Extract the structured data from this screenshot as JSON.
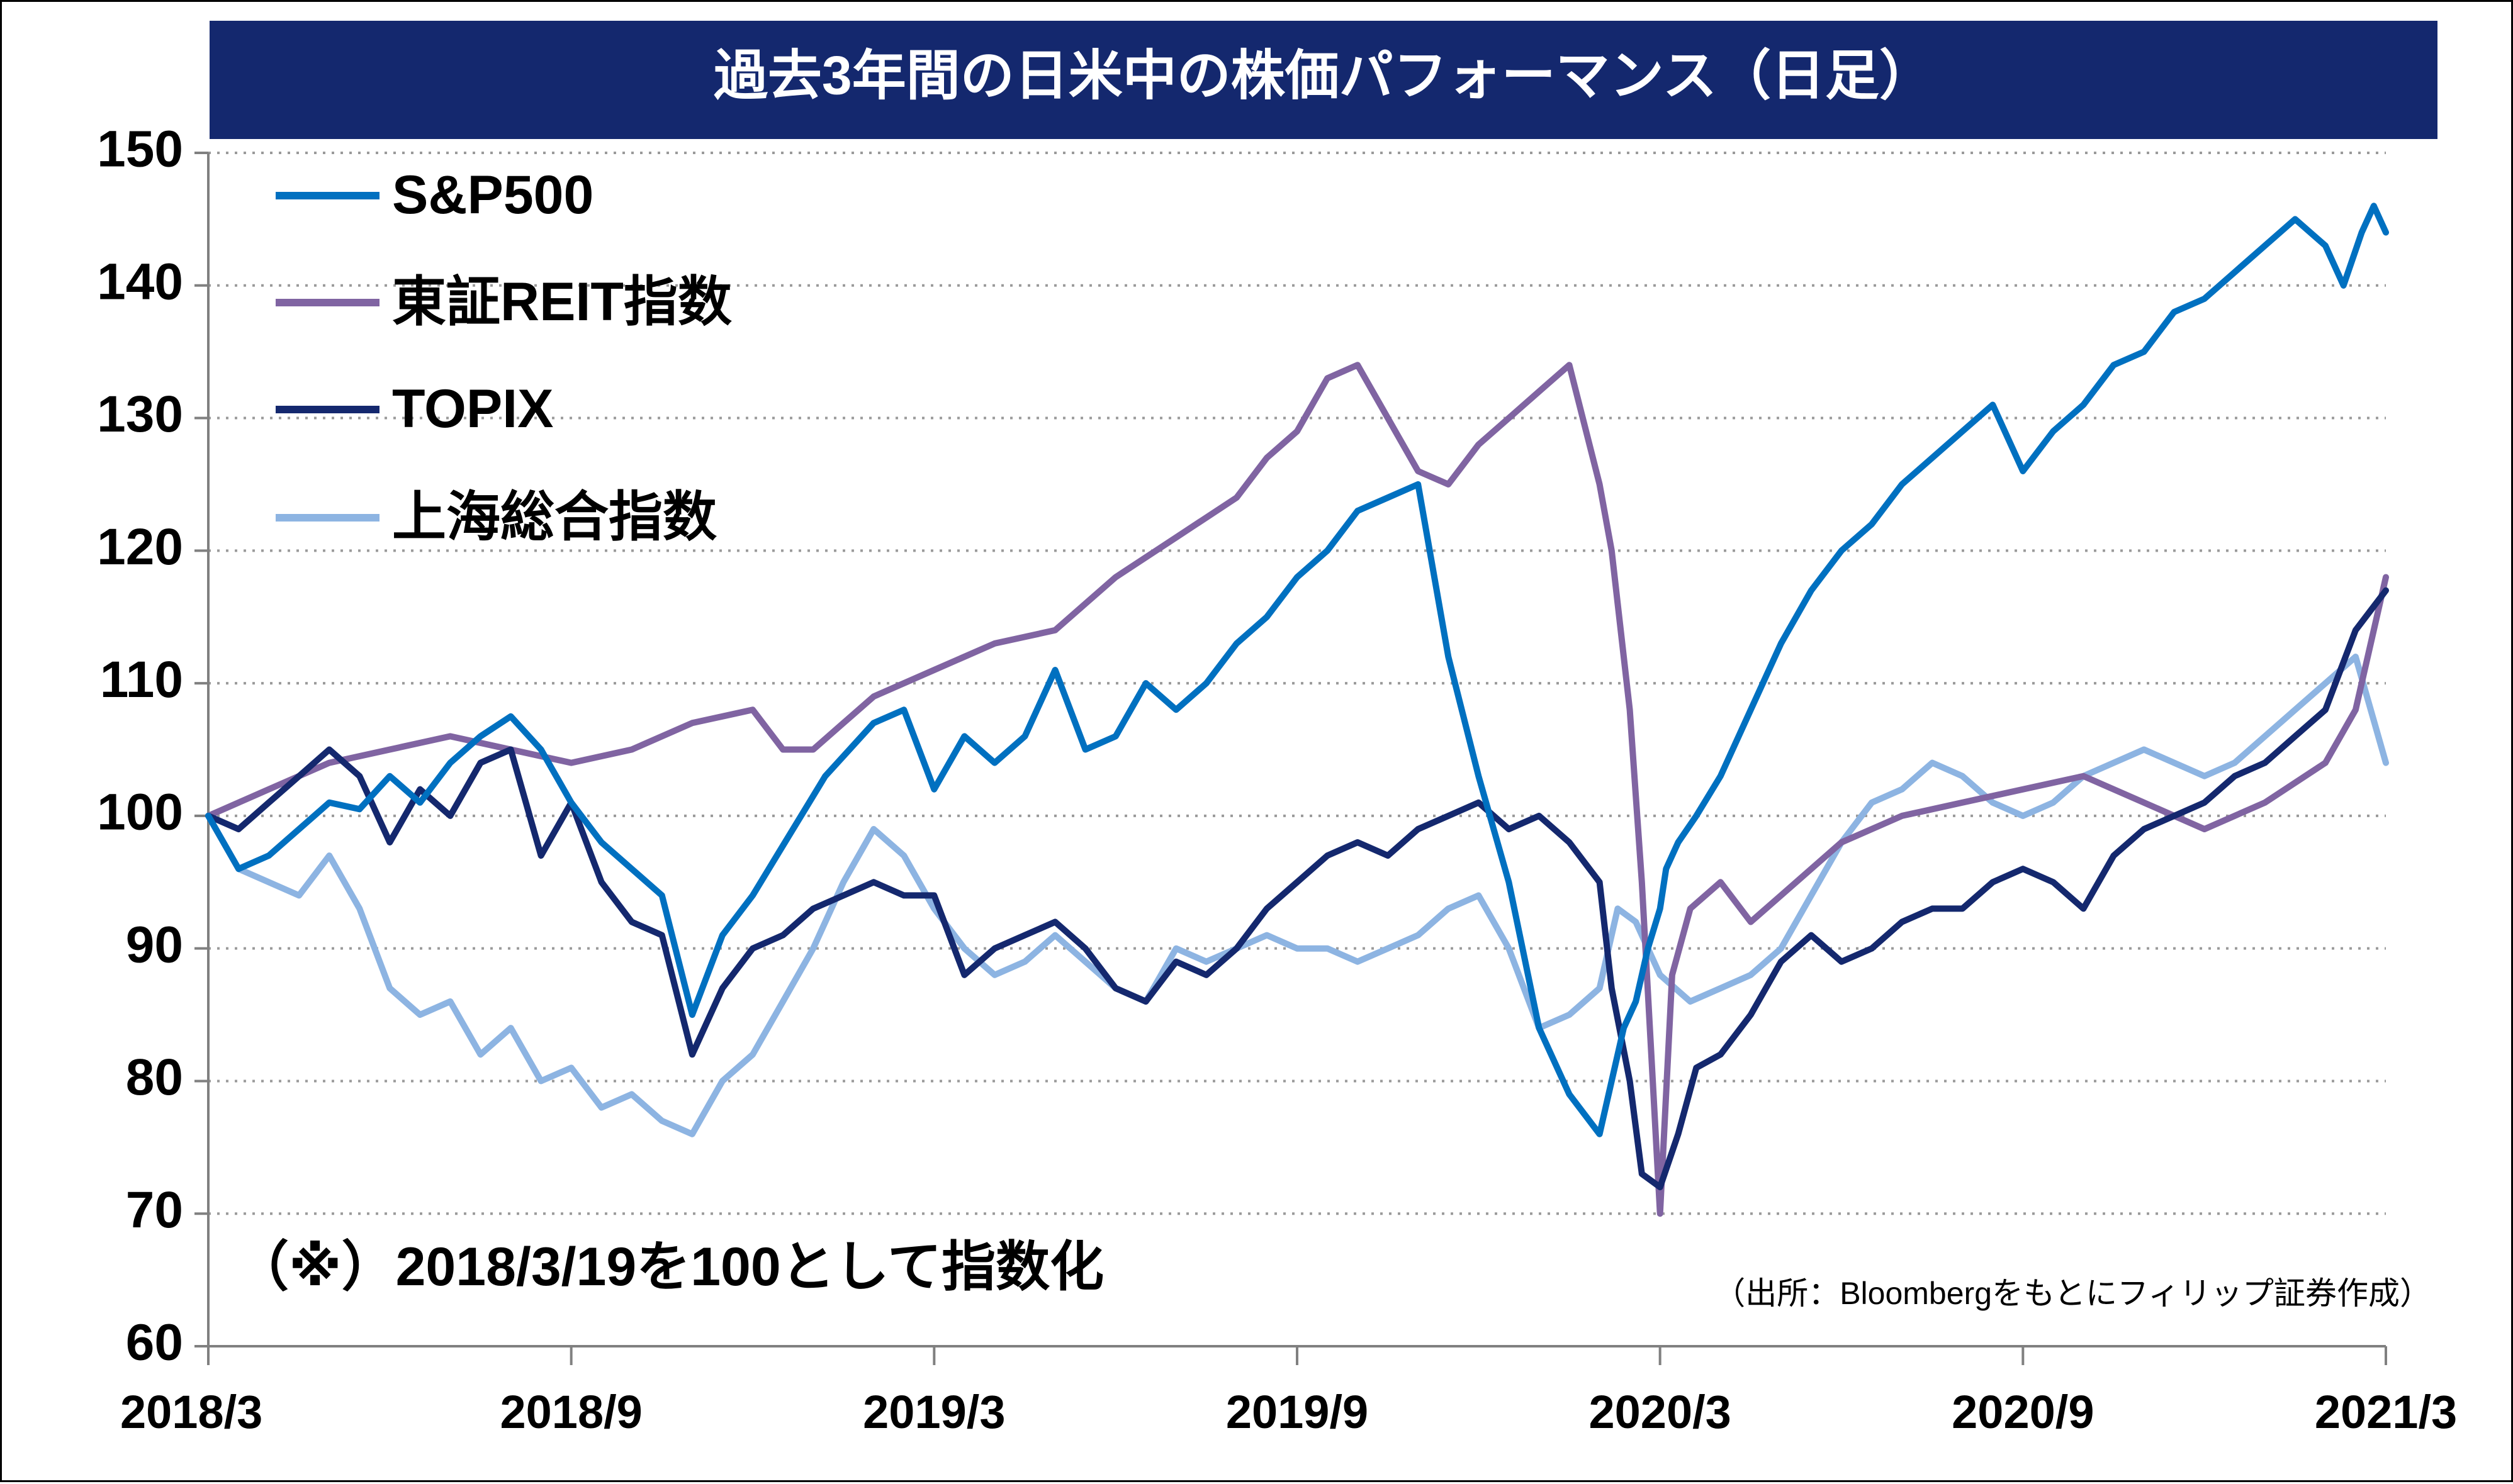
{
  "chart_data": {
    "type": "line",
    "title": "過去3年間の日米中の株価パフォーマンス（日足）",
    "note": "（※）2018/3/19を100として指数化",
    "source": "（出所：Bloombergをもとにフィリップ証券作成）",
    "xlabel": "",
    "ylabel": "",
    "ylim": [
      60,
      150
    ],
    "y_ticks": [
      "60",
      "70",
      "80",
      "90",
      "100",
      "110",
      "120",
      "130",
      "140",
      "150"
    ],
    "x_ticks": [
      "2018/3",
      "2018/9",
      "2019/3",
      "2019/9",
      "2020/3",
      "2020/9",
      "2021/3"
    ],
    "x_range": [
      0,
      36
    ],
    "grid": "horizontal dotted",
    "legend_position": "top-left",
    "series": [
      {
        "name": "S&P500",
        "color": "#0070c0",
        "x": [
          0,
          0.5,
          1,
          1.5,
          2,
          2.5,
          3,
          3.5,
          4,
          4.5,
          5,
          5.5,
          6,
          6.5,
          7,
          7.5,
          8,
          8.5,
          9,
          9.4,
          9.8,
          10.2,
          10.6,
          11,
          11.5,
          12,
          12.5,
          13,
          13.5,
          14,
          14.5,
          15,
          15.5,
          16,
          16.5,
          17,
          17.5,
          18,
          18.5,
          19,
          19.5,
          20,
          20.5,
          21,
          21.5,
          22,
          22.5,
          23,
          23.2,
          23.4,
          23.6,
          23.8,
          24,
          24.1,
          24.3,
          24.6,
          25,
          25.5,
          26,
          26.5,
          27,
          27.5,
          28,
          28.5,
          29,
          29.5,
          30,
          30.5,
          31,
          31.5,
          32,
          32.5,
          33,
          33.5,
          34,
          34.5,
          35,
          35.3,
          35.6,
          35.8,
          36
        ],
        "values": [
          100,
          96,
          97,
          99,
          101,
          100.5,
          103,
          101,
          104,
          106,
          107.5,
          105,
          101,
          98,
          96,
          94,
          85,
          91,
          94,
          97,
          100,
          103,
          105,
          107,
          108,
          102,
          106,
          104,
          106,
          111,
          105,
          106,
          110,
          108,
          110,
          113,
          115,
          118,
          120,
          123,
          124,
          125,
          112,
          103,
          95,
          84,
          79,
          76,
          80,
          84,
          86,
          90,
          93,
          96,
          98,
          100,
          103,
          108,
          113,
          117,
          120,
          122,
          125,
          127,
          129,
          131,
          126,
          129,
          131,
          134,
          135,
          138,
          139,
          141,
          143,
          145,
          143,
          140,
          144,
          146,
          144
        ]
      },
      {
        "name": "東証REIT指数",
        "color": "#8064a2",
        "x": [
          0,
          1,
          2,
          3,
          4,
          5,
          6,
          7,
          8,
          9,
          9.5,
          10,
          10.5,
          11,
          12,
          13,
          14,
          14.5,
          15,
          16,
          17,
          17.5,
          18,
          18.5,
          19,
          19.5,
          20,
          20.5,
          21,
          21.5,
          22,
          22.5,
          23,
          23.2,
          23.5,
          23.7,
          24,
          24.2,
          24.5,
          25,
          25.5,
          26,
          27,
          28,
          29,
          30,
          31,
          32,
          33,
          34,
          35,
          35.5,
          36
        ],
        "values": [
          100,
          102,
          104,
          105,
          106,
          105,
          104,
          105,
          107,
          108,
          105,
          105,
          107,
          109,
          111,
          113,
          114,
          116,
          118,
          121,
          124,
          127,
          129,
          133,
          134,
          130,
          126,
          125,
          128,
          130,
          132,
          134,
          125,
          120,
          108,
          95,
          70,
          88,
          93,
          95,
          92,
          94,
          98,
          100,
          101,
          102,
          103,
          101,
          99,
          101,
          104,
          108,
          118
        ]
      },
      {
        "name": "TOPIX",
        "color": "#14286e",
        "x": [
          0,
          0.5,
          1,
          1.5,
          2,
          2.5,
          3,
          3.5,
          4,
          4.5,
          5,
          5.5,
          6,
          6.5,
          7,
          7.5,
          8,
          8.5,
          9,
          9.5,
          10,
          10.5,
          11,
          11.5,
          12,
          12.5,
          13,
          13.5,
          14,
          14.5,
          15,
          15.5,
          16,
          16.5,
          17,
          17.5,
          18,
          18.5,
          19,
          19.5,
          20,
          20.5,
          21,
          21.5,
          22,
          22.5,
          23,
          23.2,
          23.5,
          23.7,
          24,
          24.3,
          24.6,
          25,
          25.5,
          26,
          26.5,
          27,
          27.5,
          28,
          28.5,
          29,
          29.5,
          30,
          30.5,
          31,
          31.5,
          32,
          32.5,
          33,
          33.5,
          34,
          34.5,
          35,
          35.5,
          36
        ],
        "values": [
          100,
          99,
          101,
          103,
          105,
          103,
          98,
          102,
          100,
          104,
          105,
          97,
          101,
          95,
          92,
          91,
          82,
          87,
          90,
          91,
          93,
          94,
          95,
          94,
          94,
          88,
          90,
          91,
          92,
          90,
          87,
          86,
          89,
          88,
          90,
          93,
          95,
          97,
          98,
          97,
          99,
          100,
          101,
          99,
          100,
          98,
          95,
          87,
          80,
          73,
          72,
          76,
          81,
          82,
          85,
          89,
          91,
          89,
          90,
          92,
          93,
          93,
          95,
          96,
          95,
          93,
          97,
          99,
          100,
          101,
          103,
          104,
          106,
          108,
          114,
          117
        ]
      },
      {
        "name": "上海総合指数",
        "color": "#8db4e2",
        "x": [
          0,
          0.5,
          1,
          1.5,
          2,
          2.5,
          3,
          3.5,
          4,
          4.5,
          5,
          5.5,
          6,
          6.5,
          7,
          7.5,
          8,
          8.5,
          9,
          9.5,
          10,
          10.5,
          11,
          11.5,
          12,
          12.5,
          13,
          13.5,
          14,
          14.5,
          15,
          15.5,
          16,
          16.5,
          17,
          17.5,
          18,
          18.5,
          19,
          19.5,
          20,
          20.5,
          21,
          21.5,
          22,
          22.5,
          23,
          23.3,
          23.6,
          24,
          24.5,
          25,
          25.5,
          26,
          26.5,
          27,
          27.5,
          28,
          28.5,
          29,
          29.5,
          30,
          30.5,
          31,
          31.5,
          32,
          32.5,
          33,
          33.5,
          34,
          34.5,
          35,
          35.5,
          36
        ],
        "values": [
          100,
          96,
          95,
          94,
          97,
          93,
          87,
          85,
          86,
          82,
          84,
          80,
          81,
          78,
          79,
          77,
          76,
          80,
          82,
          86,
          90,
          95,
          99,
          97,
          93,
          90,
          88,
          89,
          91,
          89,
          87,
          86,
          90,
          89,
          90,
          91,
          90,
          90,
          89,
          90,
          91,
          93,
          94,
          90,
          84,
          85,
          87,
          93,
          92,
          88,
          86,
          87,
          88,
          90,
          94,
          98,
          101,
          102,
          104,
          103,
          101,
          100,
          101,
          103,
          104,
          105,
          104,
          103,
          104,
          106,
          108,
          110,
          112,
          104
        ]
      }
    ]
  }
}
